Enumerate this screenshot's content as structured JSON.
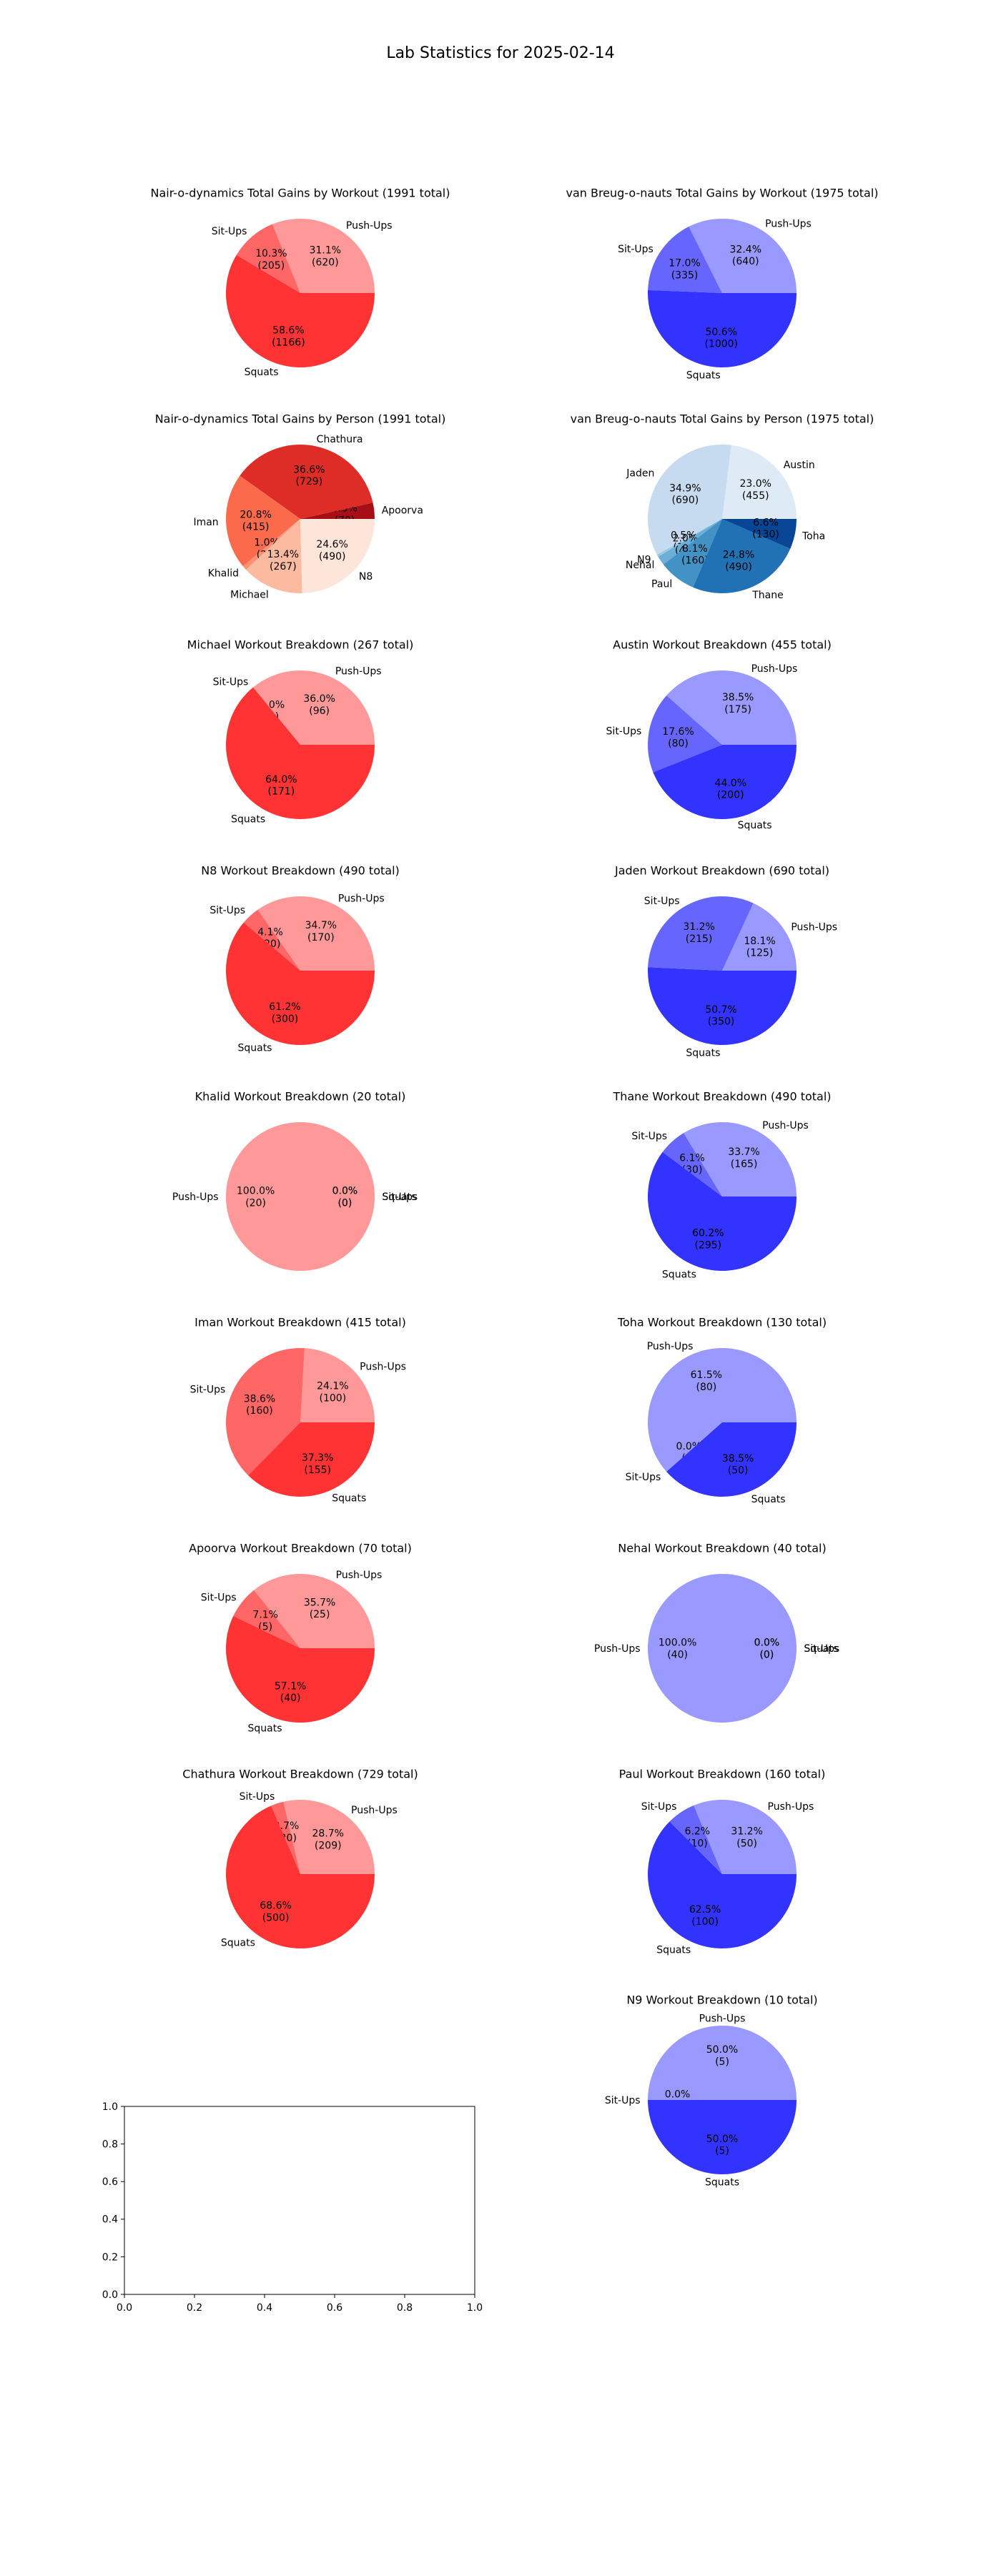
{
  "suptitle": "Lab Statistics for 2025-02-14",
  "colors": {
    "red_push": "#ff9999",
    "red_sit": "#ff6666",
    "red_squat": "#ff3333",
    "blue_push": "#9999ff",
    "blue_sit": "#6666ff",
    "blue_squat": "#3333ff",
    "reds_person": [
      "#a50f15",
      "#de2d26",
      "#fb6a4a",
      "#fc9272",
      "#fcbba1",
      "#fee5d9"
    ],
    "blues_person": [
      "#deebf7",
      "#c6dbef",
      "#9ecae1",
      "#6baed6",
      "#4292c6",
      "#2171b5",
      "#084594"
    ]
  },
  "chart_data": [
    {
      "type": "pie",
      "title": "Nair-o-dynamics Total Gains by Workout (1991 total)",
      "labels": [
        "Push-Ups",
        "Sit-Ups",
        "Squats"
      ],
      "values": [
        620,
        205,
        1166
      ],
      "pct_labels": [
        "31.1%\n(620)",
        "10.3%\n(205)",
        "58.6%\n(1166)"
      ],
      "palette": "red"
    },
    {
      "type": "pie",
      "title": "van Breug-o-nauts Total Gains by Workout (1975 total)",
      "labels": [
        "Push-Ups",
        "Sit-Ups",
        "Squats"
      ],
      "values": [
        640,
        335,
        1000
      ],
      "pct_labels": [
        "32.4%\n(640)",
        "17.0%\n(335)",
        "50.6%\n(1000)"
      ],
      "palette": "blue"
    },
    {
      "type": "pie",
      "title": "Nair-o-dynamics Total Gains by Person (1991 total)",
      "labels": [
        "Apoorva",
        "Chathura",
        "Iman",
        "Khalid",
        "Michael",
        "N8"
      ],
      "values": [
        70,
        729,
        415,
        20,
        267,
        490
      ],
      "pct_labels": [
        "3.5%\n(70)",
        "36.6%\n(729)",
        "20.8%\n(415)",
        "1.0%\n(20)",
        "13.4%\n(267)",
        "24.6%\n(490)"
      ],
      "palette": "reds_person"
    },
    {
      "type": "pie",
      "title": "van Breug-o-nauts Total Gains by Person (1975 total)",
      "labels": [
        "Austin",
        "Jaden",
        "N9",
        "Nehal",
        "Paul",
        "Thane",
        "Toha"
      ],
      "values": [
        455,
        690,
        10,
        40,
        160,
        490,
        130
      ],
      "pct_labels": [
        "23.0%\n(455)",
        "34.9%\n(690)",
        "0.5%\n(10)",
        "2.0%\n(40)",
        "8.1%\n(160)",
        "24.8%\n(490)",
        "6.6%\n(130)"
      ],
      "palette": "blues_person"
    },
    {
      "type": "pie",
      "title": "Michael Workout Breakdown (267 total)",
      "labels": [
        "Push-Ups",
        "Sit-Ups",
        "Squats"
      ],
      "values": [
        96,
        0,
        171
      ],
      "pct_labels": [
        "36.0%\n(96)",
        "0.0%\n(0)",
        "64.0%\n(171)"
      ],
      "palette": "red"
    },
    {
      "type": "pie",
      "title": "Austin Workout Breakdown (455 total)",
      "labels": [
        "Push-Ups",
        "Sit-Ups",
        "Squats"
      ],
      "values": [
        175,
        80,
        200
      ],
      "pct_labels": [
        "38.5%\n(175)",
        "17.6%\n(80)",
        "44.0%\n(200)"
      ],
      "palette": "blue"
    },
    {
      "type": "pie",
      "title": "N8 Workout Breakdown (490 total)",
      "labels": [
        "Push-Ups",
        "Sit-Ups",
        "Squats"
      ],
      "values": [
        170,
        20,
        300
      ],
      "pct_labels": [
        "34.7%\n(170)",
        "4.1%\n(20)",
        "61.2%\n(300)"
      ],
      "palette": "red"
    },
    {
      "type": "pie",
      "title": "Jaden Workout Breakdown (690 total)",
      "labels": [
        "Push-Ups",
        "Sit-Ups",
        "Squats"
      ],
      "values": [
        125,
        215,
        350
      ],
      "pct_labels": [
        "18.1%\n(125)",
        "31.2%\n(215)",
        "50.7%\n(350)"
      ],
      "palette": "blue"
    },
    {
      "type": "pie",
      "title": "Khalid Workout Breakdown (20 total)",
      "labels": [
        "Push-Ups",
        "Sit-Ups",
        "Squats"
      ],
      "values": [
        20,
        0,
        0
      ],
      "pct_labels": [
        "100.0%\n(20)",
        "0.0%\n(0)",
        "0.0%\n(0)"
      ],
      "palette": "red"
    },
    {
      "type": "pie",
      "title": "Thane Workout Breakdown (490 total)",
      "labels": [
        "Push-Ups",
        "Sit-Ups",
        "Squats"
      ],
      "values": [
        165,
        30,
        295
      ],
      "pct_labels": [
        "33.7%\n(165)",
        "6.1%\n(30)",
        "60.2%\n(295)"
      ],
      "palette": "blue"
    },
    {
      "type": "pie",
      "title": "Iman Workout Breakdown (415 total)",
      "labels": [
        "Push-Ups",
        "Sit-Ups",
        "Squats"
      ],
      "values": [
        100,
        160,
        155
      ],
      "pct_labels": [
        "24.1%\n(100)",
        "38.6%\n(160)",
        "37.3%\n(155)"
      ],
      "palette": "red"
    },
    {
      "type": "pie",
      "title": "Toha Workout Breakdown (130 total)",
      "labels": [
        "Push-Ups",
        "Sit-Ups",
        "Squats"
      ],
      "values": [
        80,
        0,
        50
      ],
      "pct_labels": [
        "61.5%\n(80)",
        "0.0%\n(0)",
        "38.5%\n(50)"
      ],
      "palette": "blue"
    },
    {
      "type": "pie",
      "title": "Apoorva Workout Breakdown (70 total)",
      "labels": [
        "Push-Ups",
        "Sit-Ups",
        "Squats"
      ],
      "values": [
        25,
        5,
        40
      ],
      "pct_labels": [
        "35.7%\n(25)",
        "7.1%\n(5)",
        "57.1%\n(40)"
      ],
      "palette": "red"
    },
    {
      "type": "pie",
      "title": "Nehal Workout Breakdown (40 total)",
      "labels": [
        "Push-Ups",
        "Sit-Ups",
        "Squats"
      ],
      "values": [
        40,
        0,
        0
      ],
      "pct_labels": [
        "100.0%\n(40)",
        "0.0%\n(0)",
        "0.0%\n(0)"
      ],
      "palette": "blue"
    },
    {
      "type": "pie",
      "title": "Chathura Workout Breakdown (729 total)",
      "labels": [
        "Push-Ups",
        "Sit-Ups",
        "Squats"
      ],
      "values": [
        209,
        20,
        500
      ],
      "pct_labels": [
        "28.7%\n(209)",
        "2.7%\n(20)",
        "68.6%\n(500)"
      ],
      "palette": "red"
    },
    {
      "type": "pie",
      "title": "Paul Workout Breakdown (160 total)",
      "labels": [
        "Push-Ups",
        "Sit-Ups",
        "Squats"
      ],
      "values": [
        50,
        10,
        100
      ],
      "pct_labels": [
        "31.2%\n(50)",
        "6.2%\n(10)",
        "62.5%\n(100)"
      ],
      "palette": "blue"
    },
    {
      "type": "empty_axes",
      "xlim": [
        0,
        1
      ],
      "ylim": [
        0,
        1
      ],
      "xticks": [
        "0.0",
        "0.2",
        "0.4",
        "0.6",
        "0.8",
        "1.0"
      ],
      "yticks": [
        "0.0",
        "0.2",
        "0.4",
        "0.6",
        "0.8",
        "1.0"
      ]
    },
    {
      "type": "pie",
      "title": "N9 Workout Breakdown (10 total)",
      "labels": [
        "Push-Ups",
        "Sit-Ups",
        "Squats"
      ],
      "values": [
        5,
        0,
        5
      ],
      "pct_labels": [
        "50.0%\n(5)",
        "0.0%\n(0)",
        "50.0%\n(5)"
      ],
      "palette": "blue"
    }
  ]
}
